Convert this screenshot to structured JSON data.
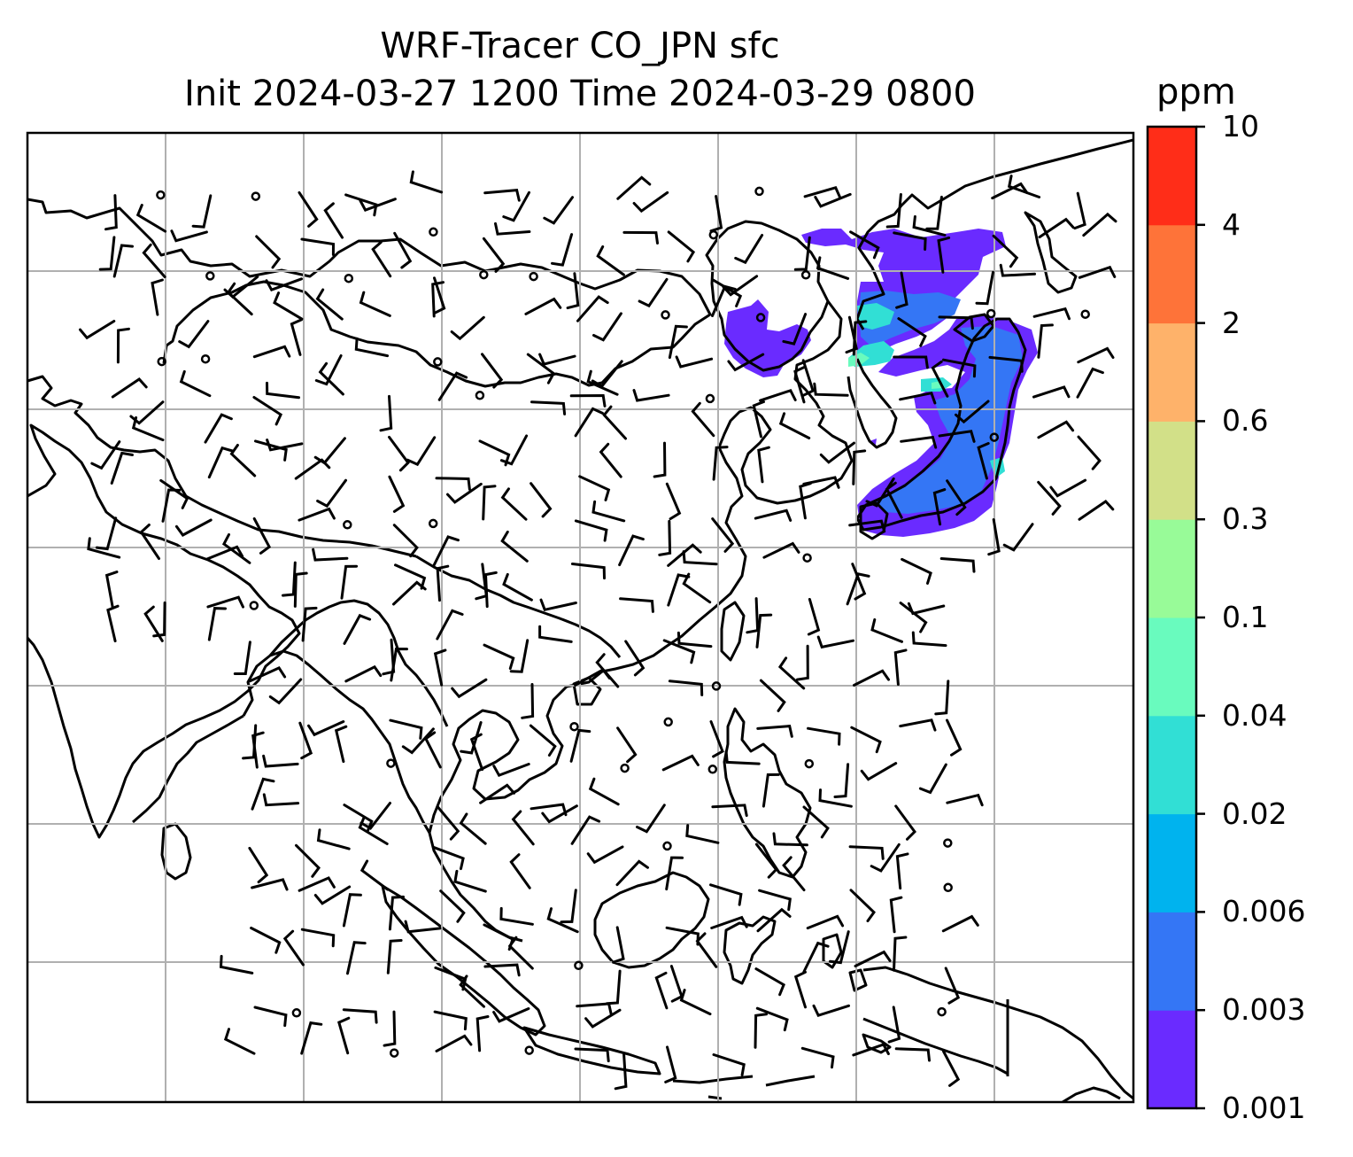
{
  "title_line1": "WRF-Tracer CO_JPN sfc",
  "title_line2": "Init 2024-03-27 1200 Time 2024-03-29 0800",
  "colorbar": {
    "unit": "ppm",
    "levels": [
      "0.001",
      "0.003",
      "0.006",
      "0.02",
      "0.04",
      "0.1",
      "0.3",
      "0.6",
      "2",
      "4",
      "10"
    ],
    "colors": [
      "#6a2bff",
      "#3476f5",
      "#00b3ee",
      "#31dfd5",
      "#69fbbe",
      "#98fb98",
      "#d2e088",
      "#feb26a",
      "#fe7339",
      "#ff2d18"
    ]
  },
  "map": {
    "gridline_color": "#b0b0b0",
    "coastline_color": "#000000",
    "wind_barbs": true,
    "calm_circles": true
  }
}
